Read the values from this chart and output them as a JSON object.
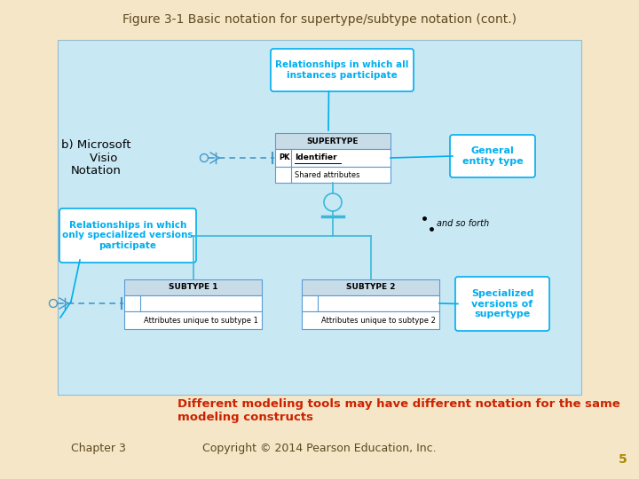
{
  "title": "Figure 3-1 Basic notation for supertype/subtype notation (cont.)",
  "bg_color": "#F5E6C8",
  "diagram_bg": "#C8E8F4",
  "title_color": "#5C4A1E",
  "subtitle_label": "b) Microsoft\n   Visio\nNotation",
  "bottom_note": "Different modeling tools may have different notation for the same\nmodeling constructs",
  "footer_left": "Chapter 3",
  "footer_center": "Copyright © 2014 Pearson Education, Inc.",
  "footer_num": "5",
  "callout_color": "#00AEEF",
  "callout_bg": "#FFFFFF",
  "entity_header_bg": "#C8DCE8",
  "entity_bg": "#FFFFFF",
  "entity_border": "#5B9BD5",
  "supertype_label": "SUPERTYPE",
  "supertype_pk": "PK  Identifier",
  "supertype_shared": "Shared attributes",
  "subtype1_label": "SUBTYPE 1",
  "subtype1_attr": "Attributes unique to subtype 1",
  "subtype2_label": "SUBTYPE 2",
  "subtype2_attr": "Attributes unique to subtype 2",
  "callout1_text": "Relationships in which all\ninstances participate",
  "callout2_text": "Relationships in which\nonly specialized versions\nparticipate",
  "callout3_text": "General\nentity type",
  "callout4_text": "Specialized\nversions of\nsupertype",
  "and_so_forth": "and so forth",
  "line_color": "#3BB8D8",
  "dashed_color": "#4499CC",
  "note_color": "#CC2200",
  "footer_color": "#5C4A1E",
  "page_num_color": "#AA8800"
}
